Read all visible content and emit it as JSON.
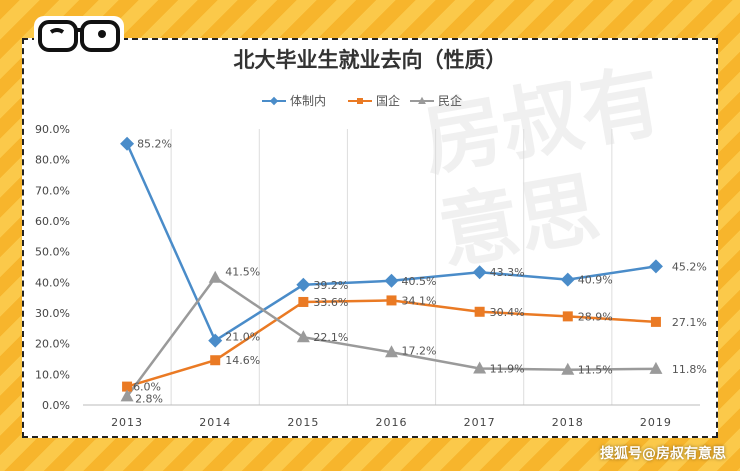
{
  "chart_data": {
    "type": "line",
    "title": "北大毕业生就业去向（性质）",
    "categories": [
      "2013",
      "2014",
      "2015",
      "2016",
      "2017",
      "2018",
      "2019"
    ],
    "series": [
      {
        "name": "体制内",
        "color": "#4a8cc9",
        "marker": "diamond",
        "values": [
          85.2,
          21.0,
          39.2,
          40.5,
          43.3,
          40.9,
          45.2
        ],
        "labels": [
          "85.2%",
          "21.0%",
          "39.2%",
          "40.5%",
          "43.3%",
          "40.9%",
          "45.2%"
        ]
      },
      {
        "name": "国企",
        "color": "#ea7a24",
        "marker": "square",
        "values": [
          6.0,
          14.6,
          33.6,
          34.1,
          30.4,
          28.9,
          27.1
        ],
        "labels": [
          "6.0%",
          "14.6%",
          "33.6%",
          "34.1%",
          "30.4%",
          "28.9%",
          "27.1%"
        ]
      },
      {
        "name": "民企",
        "color": "#9a9a9a",
        "marker": "triangle",
        "values": [
          2.8,
          41.5,
          22.1,
          17.2,
          11.9,
          11.5,
          11.8
        ],
        "labels": [
          "2.8%",
          "41.5%",
          "22.1%",
          "17.2%",
          "11.9%",
          "11.5%",
          "11.8%"
        ]
      }
    ],
    "yticks": [
      "0.0%",
      "10.0%",
      "20.0%",
      "30.0%",
      "40.0%",
      "50.0%",
      "60.0%",
      "70.0%",
      "80.0%",
      "90.0%"
    ],
    "ylim": [
      0,
      90
    ],
    "legend": "top-center",
    "grid": "vertical"
  },
  "watermark": "房叔有意思",
  "footer": "搜狐号@房叔有意思"
}
